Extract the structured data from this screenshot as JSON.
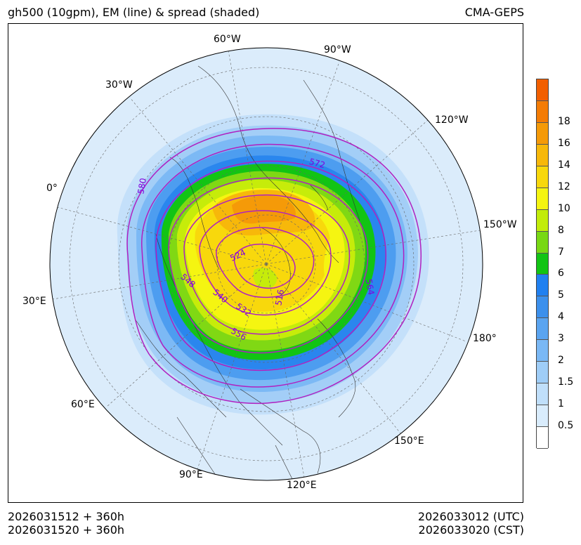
{
  "header": {
    "title": "gh500 (10gpm), EM (line) & spread (shaded)",
    "model": "CMA-GEPS"
  },
  "map": {
    "projection": "north-polar-stereographic",
    "longitude_labels": [
      "60°W",
      "90°W",
      "30°W",
      "120°W",
      "0°",
      "150°W",
      "30°E",
      "180°",
      "60°E",
      "150°E",
      "90°E",
      "120°E"
    ],
    "contour_labels": [
      "580",
      "572",
      "524",
      "548",
      "516",
      "564",
      "540",
      "532",
      "556"
    ],
    "contour_color": "#b020c0",
    "label_color": "#8000e0"
  },
  "colorbar": {
    "ticks": [
      "0.5",
      "1",
      "1.5",
      "2",
      "3",
      "4",
      "5",
      "6",
      "7",
      "8",
      "10",
      "12",
      "14",
      "16",
      "18"
    ],
    "colors": [
      "#ffffff",
      "#d9ecfc",
      "#c0dffa",
      "#9fcdf7",
      "#7ab8f5",
      "#5aa4f0",
      "#3c90ec",
      "#2080f0",
      "#12c414",
      "#78d814",
      "#c2ec0a",
      "#f5f511",
      "#f8d80c",
      "#f7b80a",
      "#f59a08",
      "#f47c05",
      "#f25f00"
    ]
  },
  "footer": {
    "init_utc": "2026031512 + 360h",
    "init_cst": "2026031520 + 360h",
    "valid_utc": "2026033012 (UTC)",
    "valid_cst": "2026033020 (CST)"
  }
}
